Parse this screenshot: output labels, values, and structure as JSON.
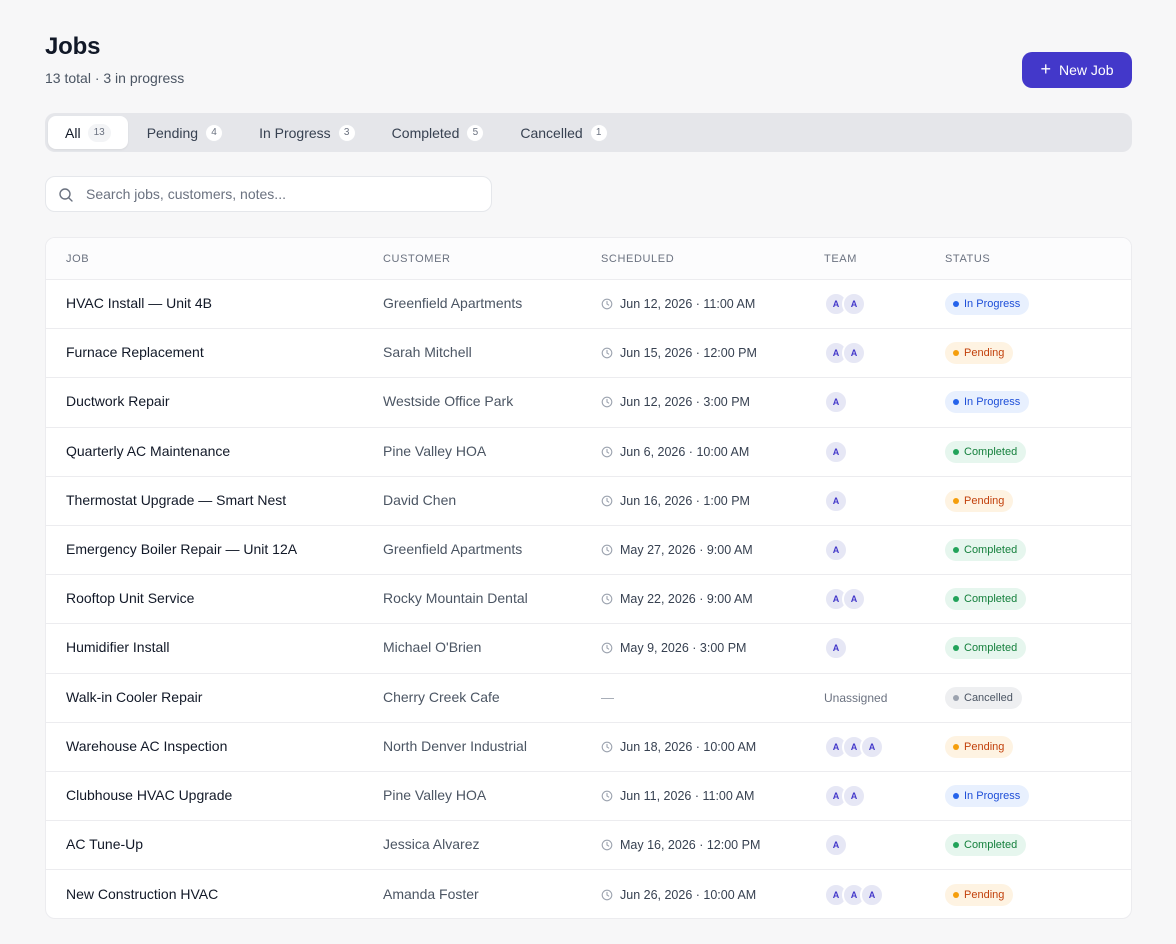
{
  "header": {
    "title": "Jobs",
    "subtitle": "13 total · 3 in progress",
    "new_button_label": "New Job"
  },
  "tabs": [
    {
      "label": "All",
      "count": "13",
      "active": true
    },
    {
      "label": "Pending",
      "count": "4",
      "active": false
    },
    {
      "label": "In Progress",
      "count": "3",
      "active": false
    },
    {
      "label": "Completed",
      "count": "5",
      "active": false
    },
    {
      "label": "Cancelled",
      "count": "1",
      "active": false
    }
  ],
  "search": {
    "placeholder": "Search jobs, customers, notes...",
    "value": ""
  },
  "table": {
    "columns": {
      "job": "JOB",
      "customer": "CUSTOMER",
      "scheduled": "SCHEDULED",
      "team": "TEAM",
      "status": "STATUS"
    },
    "unassigned_label": "Unassigned",
    "no_schedule_label": "—",
    "rows": [
      {
        "job": "HVAC Install — Unit 4B",
        "customer": "Greenfield Apartments",
        "scheduled": "Jun 12, 2026 · 11:00 AM",
        "team": [
          "A",
          "A"
        ],
        "status": "In Progress",
        "status_kind": "progress"
      },
      {
        "job": "Furnace Replacement",
        "customer": "Sarah Mitchell",
        "scheduled": "Jun 15, 2026 · 12:00 PM",
        "team": [
          "A",
          "A"
        ],
        "status": "Pending",
        "status_kind": "pending"
      },
      {
        "job": "Ductwork Repair",
        "customer": "Westside Office Park",
        "scheduled": "Jun 12, 2026 · 3:00 PM",
        "team": [
          "A"
        ],
        "status": "In Progress",
        "status_kind": "progress"
      },
      {
        "job": "Quarterly AC Maintenance",
        "customer": "Pine Valley HOA",
        "scheduled": "Jun 6, 2026 · 10:00 AM",
        "team": [
          "A"
        ],
        "status": "Completed",
        "status_kind": "completed"
      },
      {
        "job": "Thermostat Upgrade — Smart Nest",
        "customer": "David Chen",
        "scheduled": "Jun 16, 2026 · 1:00 PM",
        "team": [
          "A"
        ],
        "status": "Pending",
        "status_kind": "pending"
      },
      {
        "job": "Emergency Boiler Repair — Unit 12A",
        "customer": "Greenfield Apartments",
        "scheduled": "May 27, 2026 · 9:00 AM",
        "team": [
          "A"
        ],
        "status": "Completed",
        "status_kind": "completed"
      },
      {
        "job": "Rooftop Unit Service",
        "customer": "Rocky Mountain Dental",
        "scheduled": "May 22, 2026 · 9:00 AM",
        "team": [
          "A",
          "A"
        ],
        "status": "Completed",
        "status_kind": "completed"
      },
      {
        "job": "Humidifier Install",
        "customer": "Michael O'Brien",
        "scheduled": "May 9, 2026 · 3:00 PM",
        "team": [
          "A"
        ],
        "status": "Completed",
        "status_kind": "completed"
      },
      {
        "job": "Walk-in Cooler Repair",
        "customer": "Cherry Creek Cafe",
        "scheduled": "",
        "team": [],
        "status": "Cancelled",
        "status_kind": "cancelled"
      },
      {
        "job": "Warehouse AC Inspection",
        "customer": "North Denver Industrial",
        "scheduled": "Jun 18, 2026 · 10:00 AM",
        "team": [
          "A",
          "A",
          "A"
        ],
        "status": "Pending",
        "status_kind": "pending"
      },
      {
        "job": "Clubhouse HVAC Upgrade",
        "customer": "Pine Valley HOA",
        "scheduled": "Jun 11, 2026 · 11:00 AM",
        "team": [
          "A",
          "A"
        ],
        "status": "In Progress",
        "status_kind": "progress"
      },
      {
        "job": "AC Tune-Up",
        "customer": "Jessica Alvarez",
        "scheduled": "May 16, 2026 · 12:00 PM",
        "team": [
          "A"
        ],
        "status": "Completed",
        "status_kind": "completed"
      },
      {
        "job": "New Construction HVAC",
        "customer": "Amanda Foster",
        "scheduled": "Jun 26, 2026 · 10:00 AM",
        "team": [
          "A",
          "A",
          "A"
        ],
        "status": "Pending",
        "status_kind": "pending"
      }
    ]
  },
  "colors": {
    "accent": "#4338ca",
    "in_progress": "#2563eb",
    "pending": "#f59e0b",
    "completed": "#22a35a",
    "cancelled": "#9ca3af"
  }
}
